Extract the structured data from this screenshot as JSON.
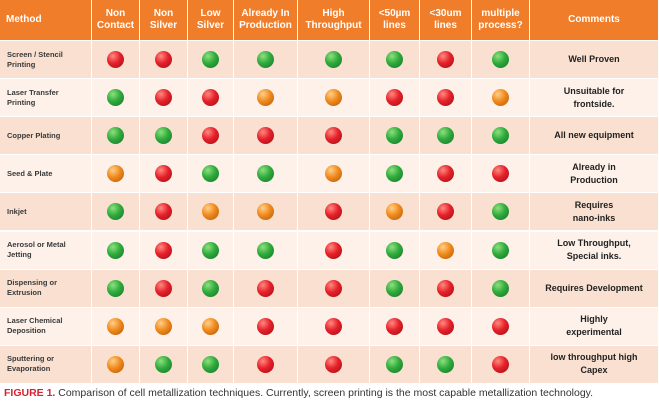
{
  "table": {
    "headers": [
      "Method",
      "Non\nContact",
      "Non\nSilver",
      "Low\nSilver",
      "Already In\nProduction",
      "High\nThroughput",
      "<50µm\nlines",
      "<30um\nlines",
      "multiple\nprocess?",
      "Comments"
    ],
    "rows": [
      {
        "method": "Screen / Stencil\nPrinting",
        "dots": [
          "red",
          "red",
          "green",
          "green",
          "green",
          "green",
          "red",
          "green"
        ],
        "comment": "Well Proven"
      },
      {
        "method": "Laser Transfer\nPrinting",
        "dots": [
          "green",
          "red",
          "red",
          "orange",
          "orange",
          "red",
          "red",
          "orange"
        ],
        "comment": "Unsuitable for\nfrontside."
      },
      {
        "method": "Copper Plating",
        "dots": [
          "green",
          "green",
          "red",
          "red",
          "red",
          "green",
          "green",
          "green"
        ],
        "comment": "All new equipment"
      },
      {
        "method": "Seed & Plate",
        "dots": [
          "orange",
          "red",
          "green",
          "green",
          "orange",
          "green",
          "red",
          "red"
        ],
        "comment": "Already in\nProduction"
      },
      {
        "method": "Inkjet",
        "dots": [
          "green",
          "red",
          "orange",
          "orange",
          "red",
          "orange",
          "red",
          "green"
        ],
        "comment": "Requires\nnano-inks"
      },
      {
        "method": "Aerosol or Metal\nJetting",
        "dots": [
          "green",
          "red",
          "green",
          "green",
          "red",
          "green",
          "orange",
          "green"
        ],
        "comment": "Low Throughput,\nSpecial inks."
      },
      {
        "method": "Dispensing or\nExtrusion",
        "dots": [
          "green",
          "red",
          "green",
          "red",
          "red",
          "green",
          "red",
          "green"
        ],
        "comment": "Requires Development"
      },
      {
        "method": "Laser Chemical\nDeposition",
        "dots": [
          "orange",
          "orange",
          "orange",
          "red",
          "red",
          "red",
          "red",
          "red"
        ],
        "comment": "Highly\nexperimental"
      },
      {
        "method": "Sputtering or\nEvaporation",
        "dots": [
          "orange",
          "green",
          "green",
          "red",
          "red",
          "green",
          "green",
          "red"
        ],
        "comment": "low throughput high\nCapex"
      }
    ]
  },
  "caption": {
    "label": "FIGURE 1.",
    "text": " Comparison of cell metallization techniques. Currently, screen printing is the most capable metallization technology."
  }
}
